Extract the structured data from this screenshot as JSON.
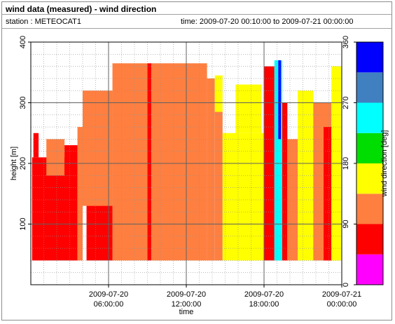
{
  "header": {
    "title": "wind data (measured) - wind direction",
    "station": "station : METEOCAT1",
    "time_range": "time: 2009-07-20 00:10:00 to 2009-07-21 00:00:00"
  },
  "chart_data": {
    "type": "heatmap",
    "xlabel": "time",
    "ylabel": "height [m]",
    "x_unit": "hours since 2009-07-20 00:00:00",
    "xlim": [
      0,
      24
    ],
    "ylim": [
      0,
      400
    ],
    "x_ticks": [
      {
        "value": 6,
        "line1": "2009-07-20",
        "line2": "06:00:00"
      },
      {
        "value": 12,
        "line1": "2009-07-20",
        "line2": "12:00:00"
      },
      {
        "value": 18,
        "line1": "2009-07-20",
        "line2": "18:00:00"
      },
      {
        "value": 24,
        "line1": "2009-07-21",
        "line2": "00:00:00"
      }
    ],
    "y_ticks": [
      100,
      200,
      300,
      400
    ],
    "grid": true,
    "colorbar": {
      "label": "wind direction [deg]",
      "range": [
        0,
        360
      ],
      "ticks": [
        0,
        90,
        180,
        270,
        360
      ],
      "bins": [
        {
          "from": 0,
          "to": 45,
          "color": "#ff00ff"
        },
        {
          "from": 45,
          "to": 90,
          "color": "#ff0000"
        },
        {
          "from": 90,
          "to": 135,
          "color": "#ff7f40"
        },
        {
          "from": 135,
          "to": 180,
          "color": "#ffff00"
        },
        {
          "from": 180,
          "to": 225,
          "color": "#00dd00"
        },
        {
          "from": 225,
          "to": 270,
          "color": "#00ffff"
        },
        {
          "from": 270,
          "to": 315,
          "color": "#4080c0"
        },
        {
          "from": 315,
          "to": 360,
          "color": "#0000ff"
        }
      ]
    },
    "cells_note": "approximate regions, hour ranges x heights in m, values in deg",
    "regions": [
      {
        "x": [
          0.1,
          3.6
        ],
        "y": [
          40,
          210
        ],
        "value": 70
      },
      {
        "x": [
          0.2,
          0.6
        ],
        "y": [
          210,
          250
        ],
        "value": 70
      },
      {
        "x": [
          1.2,
          2.6
        ],
        "y": [
          180,
          240
        ],
        "value": 110
      },
      {
        "x": [
          2.6,
          3.6
        ],
        "y": [
          175,
          230
        ],
        "value": 70
      },
      {
        "x": [
          3.6,
          4.0
        ],
        "y": [
          40,
          260
        ],
        "value": 110
      },
      {
        "x": [
          4.0,
          6.3
        ],
        "y": [
          130,
          320
        ],
        "value": 110
      },
      {
        "x": [
          4.3,
          6.3
        ],
        "y": [
          40,
          130
        ],
        "value": 70
      },
      {
        "x": [
          6.3,
          9.0
        ],
        "y": [
          40,
          365
        ],
        "value": 110
      },
      {
        "x": [
          9.0,
          9.3
        ],
        "y": [
          40,
          365
        ],
        "value": 70
      },
      {
        "x": [
          9.3,
          13.6
        ],
        "y": [
          40,
          365
        ],
        "value": 110
      },
      {
        "x": [
          13.6,
          14.2
        ],
        "y": [
          40,
          340
        ],
        "value": 110
      },
      {
        "x": [
          14.2,
          14.8
        ],
        "y": [
          40,
          285
        ],
        "value": 110
      },
      {
        "x": [
          14.2,
          14.8
        ],
        "y": [
          285,
          345
        ],
        "value": 150
      },
      {
        "x": [
          14.8,
          18.0
        ],
        "y": [
          40,
          250
        ],
        "value": 150
      },
      {
        "x": [
          15.8,
          17.8
        ],
        "y": [
          250,
          330
        ],
        "value": 150
      },
      {
        "x": [
          18.0,
          18.8
        ],
        "y": [
          40,
          360
        ],
        "value": 70
      },
      {
        "x": [
          18.8,
          19.4
        ],
        "y": [
          40,
          370
        ],
        "value": 250
      },
      {
        "x": [
          19.1,
          19.3
        ],
        "y": [
          240,
          370
        ],
        "value": 320
      },
      {
        "x": [
          19.4,
          19.8
        ],
        "y": [
          40,
          300
        ],
        "value": 70
      },
      {
        "x": [
          19.8,
          20.6
        ],
        "y": [
          40,
          240
        ],
        "value": 110
      },
      {
        "x": [
          20.6,
          21.8
        ],
        "y": [
          40,
          320
        ],
        "value": 150
      },
      {
        "x": [
          21.8,
          23.2
        ],
        "y": [
          40,
          300
        ],
        "value": 110
      },
      {
        "x": [
          22.6,
          23.2
        ],
        "y": [
          40,
          260
        ],
        "value": 70
      },
      {
        "x": [
          23.2,
          24.0
        ],
        "y": [
          40,
          360
        ],
        "value": 150
      }
    ]
  }
}
